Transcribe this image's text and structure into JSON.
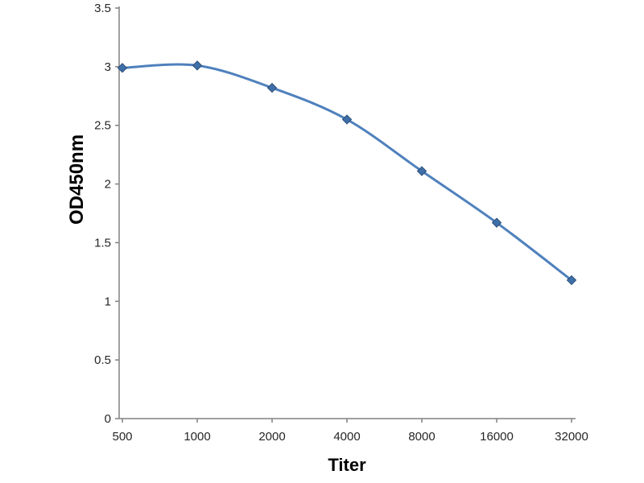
{
  "chart_data": {
    "type": "line",
    "categories": [
      "500",
      "1000",
      "2000",
      "4000",
      "8000",
      "16000",
      "32000"
    ],
    "values": [
      2.99,
      3.01,
      2.82,
      2.55,
      2.11,
      1.67,
      1.18
    ],
    "title": "",
    "xlabel": "Titer",
    "ylabel": "OD450nm",
    "ylim": [
      0,
      3.5
    ],
    "yticks": [
      "0",
      "0.5",
      "1",
      "1.5",
      "2",
      "2.5",
      "3",
      "3.5"
    ],
    "line_color": "#4f81bd",
    "marker_fill": "#3f6fa8",
    "marker_edge": "#2c4f79",
    "axis_color": "#808080",
    "grid": false,
    "legend": false
  }
}
